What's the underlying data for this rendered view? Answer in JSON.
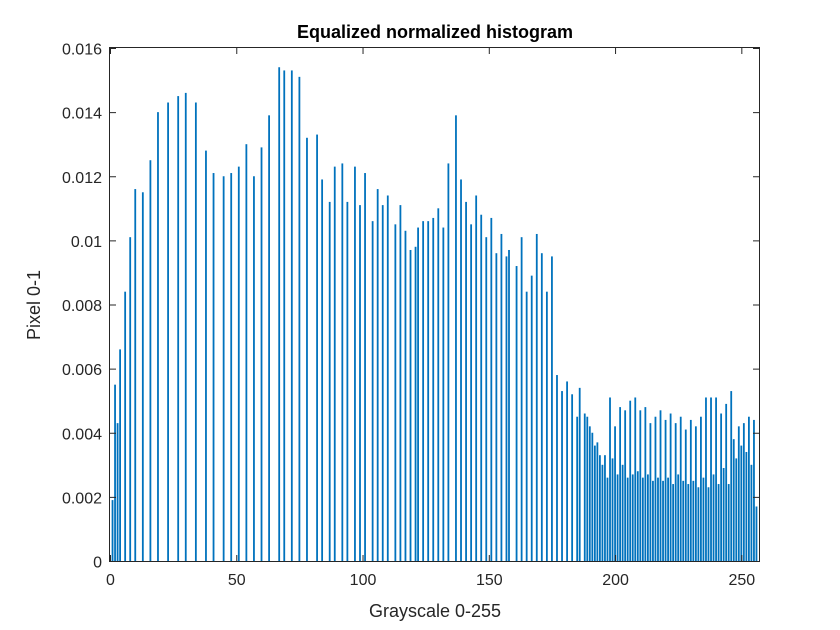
{
  "chart_data": {
    "type": "bar",
    "title": "Equalized normalized histogram",
    "xlabel": "Grayscale 0-255",
    "ylabel": "Pixel 0-1",
    "xlim": [
      0,
      257
    ],
    "ylim": [
      0,
      0.016
    ],
    "xticks": [
      0,
      50,
      100,
      150,
      200,
      250
    ],
    "yticks": [
      0,
      0.002,
      0.004,
      0.006,
      0.008,
      0.01,
      0.012,
      0.014,
      0.016
    ],
    "yticklabels": [
      "0",
      "0.002",
      "0.004",
      "0.006",
      "0.008",
      "0.01",
      "0.012",
      "0.014",
      "0.016"
    ],
    "grid": false,
    "bar_color": "#0072bd",
    "x": [
      1,
      2,
      3,
      4,
      6,
      8,
      10,
      13,
      16,
      19,
      23,
      27,
      30,
      34,
      38,
      41,
      45,
      48,
      51,
      54,
      57,
      60,
      63,
      67,
      69,
      72,
      75,
      78,
      82,
      84,
      87,
      89,
      92,
      94,
      97,
      99,
      101,
      104,
      106,
      108,
      110,
      113,
      115,
      117,
      119,
      121,
      122,
      124,
      126,
      128,
      130,
      132,
      134,
      137,
      139,
      141,
      143,
      145,
      147,
      149,
      151,
      153,
      155,
      157,
      158,
      161,
      163,
      165,
      167,
      169,
      171,
      173,
      175,
      177,
      179,
      181,
      183,
      185,
      186,
      188,
      189,
      190,
      191,
      192,
      193,
      194,
      195,
      196,
      197,
      198,
      199,
      200,
      201,
      202,
      203,
      204,
      205,
      206,
      207,
      208,
      209,
      210,
      211,
      212,
      213,
      214,
      215,
      216,
      217,
      218,
      219,
      220,
      221,
      222,
      223,
      224,
      225,
      226,
      227,
      228,
      229,
      230,
      231,
      232,
      233,
      234,
      235,
      236,
      237,
      238,
      239,
      240,
      241,
      242,
      243,
      244,
      245,
      246,
      247,
      248,
      249,
      250,
      251,
      252,
      253,
      254,
      255,
      256
    ],
    "values": [
      0.0019,
      0.0055,
      0.0043,
      0.0066,
      0.0084,
      0.0101,
      0.0116,
      0.0115,
      0.0125,
      0.014,
      0.0143,
      0.0145,
      0.0146,
      0.0143,
      0.0128,
      0.0121,
      0.012,
      0.0121,
      0.0123,
      0.013,
      0.012,
      0.0129,
      0.0139,
      0.0154,
      0.0153,
      0.0153,
      0.0151,
      0.0132,
      0.0133,
      0.0119,
      0.0112,
      0.0123,
      0.0124,
      0.0112,
      0.0123,
      0.0111,
      0.0121,
      0.0106,
      0.0116,
      0.0111,
      0.0114,
      0.0105,
      0.0111,
      0.0103,
      0.0097,
      0.0098,
      0.0104,
      0.0106,
      0.0106,
      0.0107,
      0.011,
      0.0104,
      0.0124,
      0.0139,
      0.0119,
      0.0112,
      0.0105,
      0.0114,
      0.0108,
      0.0101,
      0.0107,
      0.0096,
      0.0102,
      0.0095,
      0.0097,
      0.0092,
      0.0101,
      0.0084,
      0.0089,
      0.0102,
      0.0096,
      0.0084,
      0.0095,
      0.0058,
      0.0053,
      0.0056,
      0.0052,
      0.0045,
      0.0054,
      0.0046,
      0.0045,
      0.0042,
      0.004,
      0.0036,
      0.0037,
      0.0033,
      0.003,
      0.0033,
      0.0026,
      0.0051,
      0.0032,
      0.0042,
      0.0027,
      0.0048,
      0.003,
      0.0047,
      0.0026,
      0.005,
      0.0027,
      0.0051,
      0.0028,
      0.0047,
      0.0026,
      0.0048,
      0.0027,
      0.0043,
      0.0025,
      0.0045,
      0.0026,
      0.0047,
      0.0025,
      0.0044,
      0.0026,
      0.0046,
      0.0024,
      0.0043,
      0.0027,
      0.0045,
      0.0025,
      0.0041,
      0.0024,
      0.0044,
      0.0025,
      0.0042,
      0.0023,
      0.0045,
      0.0026,
      0.0051,
      0.0023,
      0.0051,
      0.0027,
      0.0051,
      0.0024,
      0.0046,
      0.0029,
      0.0049,
      0.0024,
      0.0053,
      0.0038,
      0.0032,
      0.0042,
      0.0036,
      0.0043,
      0.0034,
      0.0045,
      0.003,
      0.0044,
      0.0017
    ]
  }
}
